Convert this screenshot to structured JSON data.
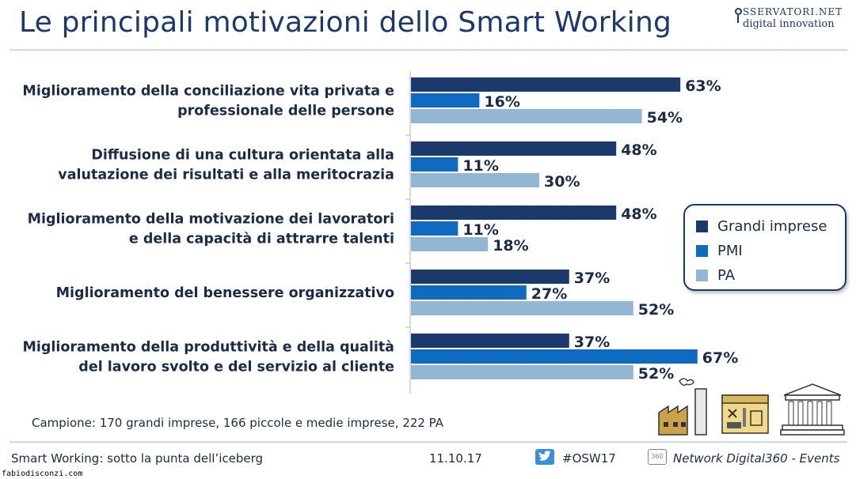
{
  "header": {
    "title": "Le principali motivazioni dello Smart Working",
    "logo_top": "SSERVATORI.NET",
    "logo_bottom": "digital innovation"
  },
  "colors": {
    "grandi_imprese": "#1b3a6b",
    "pmi": "#0f6bc0",
    "pa": "#93b6d4",
    "text": "#1a2c48"
  },
  "chart_data": {
    "type": "bar",
    "orientation": "horizontal",
    "categories": [
      [
        "Miglioramento della conciliazione vita privata e",
        "professionale delle persone"
      ],
      [
        "Diffusione di una cultura orientata alla",
        "valutazione dei risultati e alla meritocrazia"
      ],
      [
        "Miglioramento della motivazione dei lavoratori",
        "e della capacità di attrarre talenti"
      ],
      [
        "Miglioramento del benessere organizzativo"
      ],
      [
        "Miglioramento della produttività e della qualità",
        "del lavoro svolto e del servizio al cliente"
      ]
    ],
    "series": [
      {
        "name": "Grandi imprese",
        "values": [
          63,
          48,
          48,
          37,
          37
        ]
      },
      {
        "name": "PMI",
        "values": [
          16,
          11,
          11,
          27,
          67
        ]
      },
      {
        "name": "PA",
        "values": [
          54,
          30,
          18,
          52,
          52
        ]
      }
    ],
    "value_suffix": "%",
    "xlim": [
      0,
      100
    ],
    "legend_position": "right"
  },
  "legend": {
    "items": [
      "Grandi imprese",
      "PMI",
      "PA"
    ]
  },
  "sample_note": "Campione: 170 grandi imprese, 166 piccole e medie imprese, 222 PA",
  "icons": [
    "factory-icon",
    "workshop-icon",
    "government-building-icon"
  ],
  "footer": {
    "left_text": "Smart Working: sotto la punta dell’iceberg",
    "date": "11.10.17",
    "hashtag": "#OSW17",
    "network_badge": "360",
    "network": "Network Digital360 - Events"
  },
  "watermark": "fabiodisconzi.com"
}
